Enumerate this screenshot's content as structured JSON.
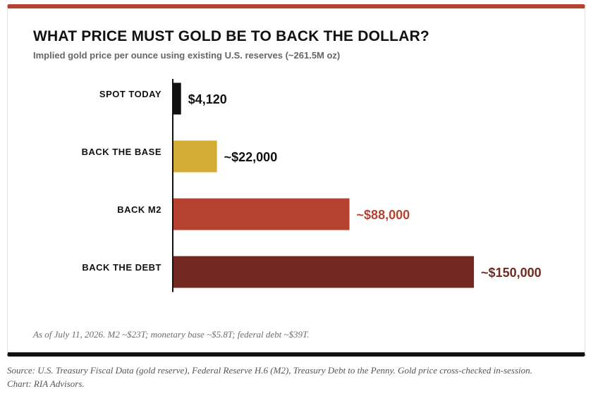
{
  "accent": "#b5432f",
  "chart_data": {
    "type": "bar",
    "orientation": "horizontal",
    "title": "WHAT PRICE MUST GOLD BE TO BACK THE DOLLAR?",
    "subtitle": "Implied gold price per ounce using existing U.S. reserves (~261.5M oz)",
    "xlim": [
      0,
      170000
    ],
    "grid": false,
    "bars": [
      {
        "category": "SPOT TODAY",
        "value": 4120,
        "label": "$4,120",
        "color": "#111111",
        "label_color": "#111111"
      },
      {
        "category": "BACK THE BASE",
        "value": 22000,
        "label": "~$22,000",
        "color": "#d3ac36",
        "label_color": "#111111"
      },
      {
        "category": "BACK M2",
        "value": 88000,
        "label": "~$88,000",
        "color": "#b5432f",
        "label_color": "#b5432f"
      },
      {
        "category": "BACK THE DEBT",
        "value": 150000,
        "label": "~$150,000",
        "color": "#722a20",
        "label_color": "#722a20"
      }
    ],
    "footnote": "As of July 11, 2026. M2 ~$23T; monetary base ~$5.8T; federal debt ~$39T."
  },
  "source": {
    "line1": "Source: U.S. Treasury Fiscal Data (gold reserve), Federal Reserve H.6 (M2), Treasury Debt to the Penny. Gold price cross-checked in-session.",
    "line2": "Chart: RIA Advisors."
  }
}
